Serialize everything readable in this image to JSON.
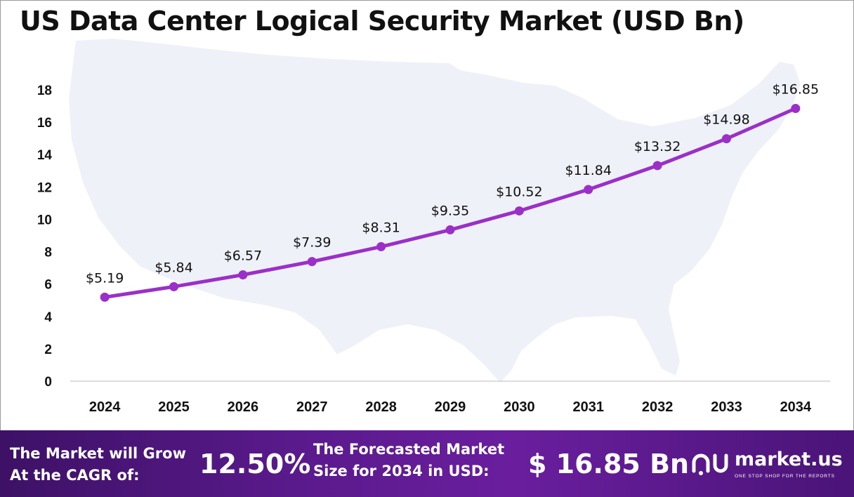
{
  "chart_data": {
    "type": "line",
    "title": "US Data Center Logical Security Market (USD Bn)",
    "categories": [
      "2024",
      "2025",
      "2026",
      "2027",
      "2028",
      "2029",
      "2030",
      "2031",
      "2032",
      "2033",
      "2034"
    ],
    "values": [
      5.19,
      5.84,
      6.57,
      7.39,
      8.31,
      9.35,
      10.52,
      11.84,
      13.32,
      14.98,
      16.85
    ],
    "data_labels": [
      "$5.19",
      "$5.84",
      "$6.57",
      "$7.39",
      "$8.31",
      "$9.35",
      "$10.52",
      "$11.84",
      "$13.32",
      "$14.98",
      "$16.85"
    ],
    "y_ticks": [
      0,
      2,
      4,
      6,
      8,
      10,
      12,
      14,
      16,
      18
    ],
    "ylim": [
      0,
      18
    ],
    "xlabel": "",
    "ylabel": "",
    "grid": false,
    "line_color": "#9b30c8",
    "background_map": "united-states-map"
  },
  "footer": {
    "grow_line1": "The Market will Grow",
    "grow_line2": "At the CAGR of:",
    "cagr_value": "12.50%",
    "forecast_line1": "The Forecasted Market",
    "forecast_line2": "Size for 2034 in USD:",
    "forecast_value": "$ 16.85 Bn",
    "brand": "market.us",
    "tagline": "ONE STOP SHOP FOR THE REPORTS"
  },
  "colors": {
    "footer_gradient_start": "#3d1166",
    "footer_gradient_end": "#6a1e9e",
    "map_fill": "#eef1f8"
  }
}
